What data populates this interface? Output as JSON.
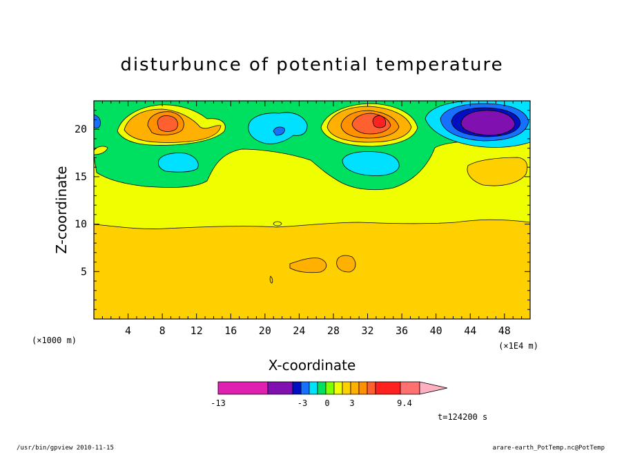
{
  "chart_data": {
    "type": "heatmap",
    "title": "disturbunce of potential temperature",
    "xlabel": "X-coordinate",
    "ylabel": "Z-coordinate",
    "x_unit_left": "(×1000 m)",
    "x_unit_right": "(×1E4 m)",
    "xlim": [
      0,
      51
    ],
    "ylim": [
      0,
      23
    ],
    "x_ticks": [
      "4",
      "8",
      "12",
      "16",
      "20",
      "24",
      "28",
      "32",
      "36",
      "40",
      "44",
      "48"
    ],
    "y_ticks": [
      "5",
      "10",
      "15",
      "20"
    ],
    "colorbar": {
      "labels": [
        "-13",
        "-3",
        "0",
        "3",
        "9.4"
      ],
      "bins": [
        "#e020b0",
        "#8010b0",
        "#0010c0",
        "#1870ff",
        "#00e0ff",
        "#00e060",
        "#80ff00",
        "#f0ff00",
        "#ffd000",
        "#ffb000",
        "#ff9000",
        "#ff6030",
        "#ff2020",
        "#ff7070",
        "#ffb0c0"
      ]
    },
    "features": [
      {
        "x": 8.5,
        "z": 20.5,
        "value": "positive max"
      },
      {
        "x": 33.5,
        "z": 20.7,
        "value": "positive max"
      },
      {
        "x": 46.5,
        "z": 20.5,
        "value": "negative min"
      },
      {
        "x": 9.5,
        "z": 16.5,
        "value": "negative"
      },
      {
        "x": 32.5,
        "z": 16.5,
        "value": "negative"
      },
      {
        "x": 21.5,
        "z": 19.7,
        "value": "negative"
      }
    ]
  },
  "annotations": {
    "time": "t=124200 s",
    "footer_left": "/usr/bin/gpview  2010-11-15",
    "footer_right": "arare-earth_PotTemp.nc@PotTemp"
  }
}
